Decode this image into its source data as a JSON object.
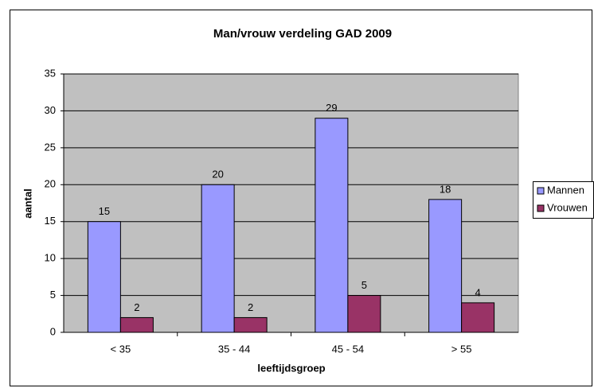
{
  "chart_data": {
    "type": "bar",
    "title": "Man/vrouw verdeling GAD 2009",
    "xlabel": "leeftijdsgroep",
    "ylabel": "aantal",
    "categories": [
      "< 35",
      "35 - 44",
      "45 - 54",
      "> 55"
    ],
    "series": [
      {
        "name": "Mannen",
        "color": "#9999ff",
        "values": [
          15,
          20,
          29,
          18
        ]
      },
      {
        "name": "Vrouwen",
        "color": "#993366",
        "values": [
          2,
          2,
          5,
          4
        ]
      }
    ],
    "ylim": [
      0,
      35
    ],
    "yticks": [
      0,
      5,
      10,
      15,
      20,
      25,
      30,
      35
    ],
    "grid": true,
    "legend": "right"
  }
}
